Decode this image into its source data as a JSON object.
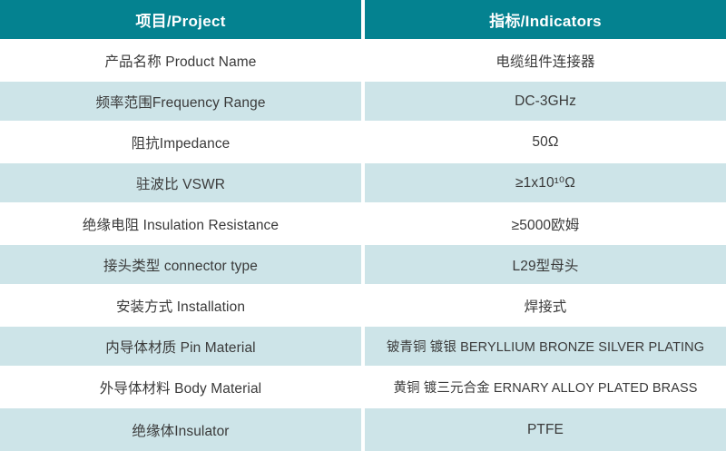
{
  "colors": {
    "header_bg": "#048290",
    "header_text": "#ffffff",
    "alt_row_bg": "#cde4e8",
    "white_row_bg": "#ffffff",
    "body_text": "#3a3a3a"
  },
  "table": {
    "header": {
      "project": "项目/Project",
      "indicators": "指标/Indicators"
    },
    "rows": [
      {
        "project": "产品名称 Product Name",
        "indicator": "电缆组件连接器"
      },
      {
        "project": "频率范围Frequency Range",
        "indicator": "DC-3GHz"
      },
      {
        "project": "阻抗Impedance",
        "indicator": "50Ω"
      },
      {
        "project": "驻波比 VSWR",
        "indicator": "≥1x10¹⁰Ω"
      },
      {
        "project": "绝缘电阻 Insulation Resistance",
        "indicator": "≥5000欧姆"
      },
      {
        "project": "接头类型 connector type",
        "indicator": "L29型母头"
      },
      {
        "project": "安装方式 Installation",
        "indicator": "焊接式"
      },
      {
        "project": "内导体材质 Pin Material",
        "indicator": "铍青铜 镀银 BERYLLIUM BRONZE SILVER PLATING"
      },
      {
        "project": "外导体材料 Body Material",
        "indicator": "黄铜 镀三元合金 ERNARY ALLOY PLATED BRASS"
      },
      {
        "project": "绝缘体Insulator",
        "indicator": "PTFE"
      }
    ]
  }
}
